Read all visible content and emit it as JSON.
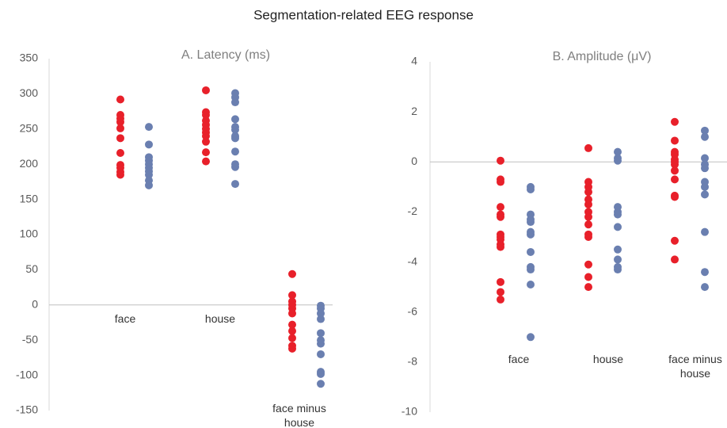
{
  "title": "Segmentation-related EEG response",
  "chart_data": [
    {
      "type": "strip",
      "title": "A. Latency (ms)",
      "categories": [
        "face",
        "house",
        "face minus house"
      ],
      "ylim": [
        -150,
        350
      ],
      "yticks": [
        -150,
        -100,
        -50,
        0,
        50,
        100,
        150,
        200,
        250,
        300,
        350
      ],
      "series": [
        {
          "color": "#e8202a",
          "values": [
            [
              292,
              270,
              265,
              260,
              251,
              237,
              216,
              199,
              195,
              189,
              185
            ],
            [
              305,
              274,
              270,
              262,
              256,
              250,
              245,
              240,
              232,
              217,
              204
            ],
            [
              44,
              14,
              5,
              0,
              -5,
              -12,
              -28,
              -37,
              -47,
              -58,
              -62
            ]
          ]
        },
        {
          "color": "#6a7fb0",
          "values": [
            [
              253,
              228,
              210,
              205,
              200,
              195,
              190,
              185,
              177,
              170
            ],
            [
              301,
              295,
              288,
              264,
              253,
              249,
              240,
              237,
              218,
              200,
              196,
              172
            ],
            [
              -1,
              -5,
              -12,
              -20,
              -40,
              -50,
              -55,
              -70,
              -95,
              -98,
              -112
            ]
          ]
        }
      ]
    },
    {
      "type": "strip",
      "title": "B. Amplitude (μV)",
      "categories": [
        "face",
        "house",
        "face minus house"
      ],
      "ylim": [
        -10,
        4
      ],
      "yticks": [
        -10,
        -8,
        -6,
        -4,
        -2,
        0,
        2,
        4
      ],
      "series": [
        {
          "color": "#e8202a",
          "values": [
            [
              0.05,
              -0.7,
              -0.8,
              -1.8,
              -2.1,
              -2.2,
              -2.9,
              -3.0,
              -3.1,
              -3.3,
              -3.4,
              -4.8,
              -5.2,
              -5.5
            ],
            [
              0.55,
              -0.8,
              -1.0,
              -1.2,
              -1.5,
              -1.7,
              -2.0,
              -2.2,
              -2.5,
              -2.9,
              -3.0,
              -4.1,
              -4.6,
              -5.0
            ],
            [
              1.6,
              0.85,
              0.4,
              0.3,
              0.1,
              0.0,
              -0.1,
              -0.35,
              -0.7,
              -1.35,
              -1.4,
              -3.15,
              -3.9
            ]
          ]
        },
        {
          "color": "#6a7fb0",
          "values": [
            [
              -1.0,
              -1.1,
              -2.1,
              -2.3,
              -2.4,
              -2.8,
              -2.9,
              -3.6,
              -4.2,
              -4.3,
              -4.9,
              -7.0
            ],
            [
              0.4,
              0.15,
              0.05,
              -1.8,
              -2.0,
              -2.1,
              -2.6,
              -3.5,
              -3.9,
              -4.2,
              -4.3
            ],
            [
              1.25,
              1.0,
              0.15,
              -0.1,
              -0.25,
              -0.8,
              -1.0,
              -1.3,
              -2.8,
              -4.4,
              -5.0
            ]
          ]
        }
      ]
    }
  ]
}
